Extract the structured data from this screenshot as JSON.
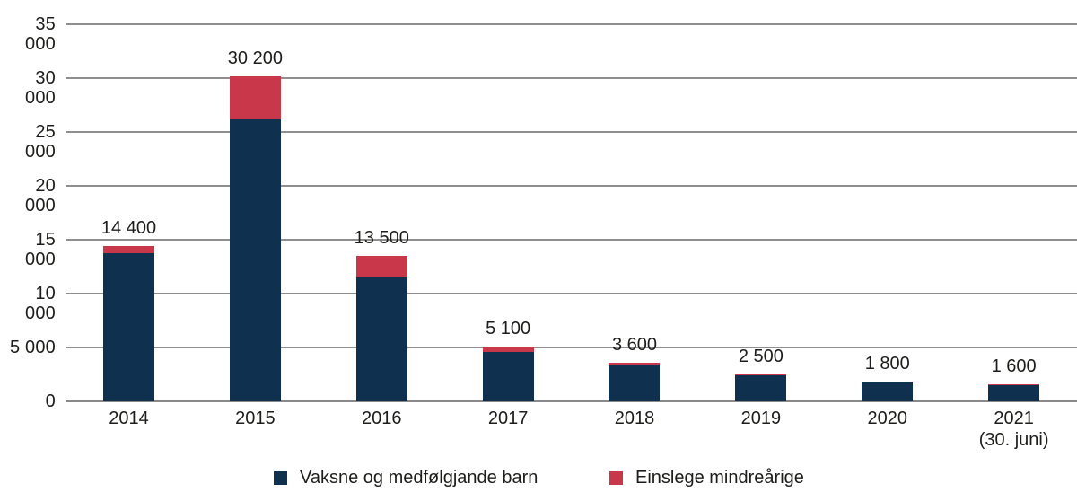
{
  "chart_data": {
    "type": "bar",
    "stacked": true,
    "title": "",
    "xlabel": "",
    "ylabel": "",
    "categories": [
      "2014",
      "2015",
      "2016",
      "2017",
      "2018",
      "2019",
      "2020",
      "2021"
    ],
    "category_second_lines": [
      "",
      "",
      "",
      "",
      "",
      "",
      "",
      "(30. juni)"
    ],
    "series": [
      {
        "name": "Vaksne og medfølgjande barn",
        "color": "#10304f",
        "values": [
          13750,
          26200,
          11500,
          4550,
          3300,
          2400,
          1730,
          1530
        ]
      },
      {
        "name": "Einslege mindreårige",
        "color": "#c8374a",
        "values": [
          650,
          4000,
          2000,
          550,
          300,
          100,
          70,
          70
        ]
      }
    ],
    "totals": [
      14400,
      30200,
      13500,
      5100,
      3600,
      2500,
      1800,
      1600
    ],
    "total_labels": [
      "14 400",
      "30 200",
      "13 500",
      "5 100",
      "3 600",
      "2 500",
      "1 800",
      "1 600"
    ],
    "y_axis": {
      "min": 0,
      "max": 35000,
      "step": 5000,
      "tick_labels": [
        "0",
        "5 000",
        "10 000",
        "15 000",
        "20 000",
        "25 000",
        "30 000",
        "35 000"
      ]
    },
    "grid": true,
    "legend_position": "bottom",
    "colors": {
      "grid": "#8f8f8f",
      "axis": "#8a8a8a",
      "text": "#1d1d1b",
      "background": "#ffffff"
    }
  }
}
